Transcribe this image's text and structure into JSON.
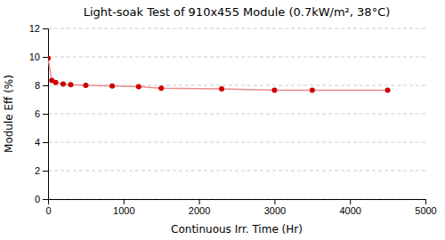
{
  "chart_data": {
    "type": "line",
    "title": "Light-soak Test of 910x455 Module (0.7kW/m², 38°C)",
    "xlabel": "Continuous Irr. Time (Hr)",
    "ylabel": "Module Eff (%)",
    "x": [
      0,
      50,
      100,
      200,
      300,
      500,
      850,
      1200,
      1500,
      2300,
      3000,
      3500,
      4500
    ],
    "values": [
      9.9,
      8.35,
      8.2,
      8.1,
      8.05,
      8.0,
      7.95,
      7.9,
      7.8,
      7.75,
      7.65,
      7.65,
      7.65
    ],
    "color": "#cc0000",
    "marker": "circle",
    "xlim": [
      0,
      5000
    ],
    "ylim": [
      0,
      12
    ],
    "xticks": [
      0,
      1000,
      2000,
      3000,
      4000,
      5000
    ],
    "yticks": [
      0,
      2,
      4,
      6,
      8,
      10,
      12
    ],
    "grid": true
  }
}
